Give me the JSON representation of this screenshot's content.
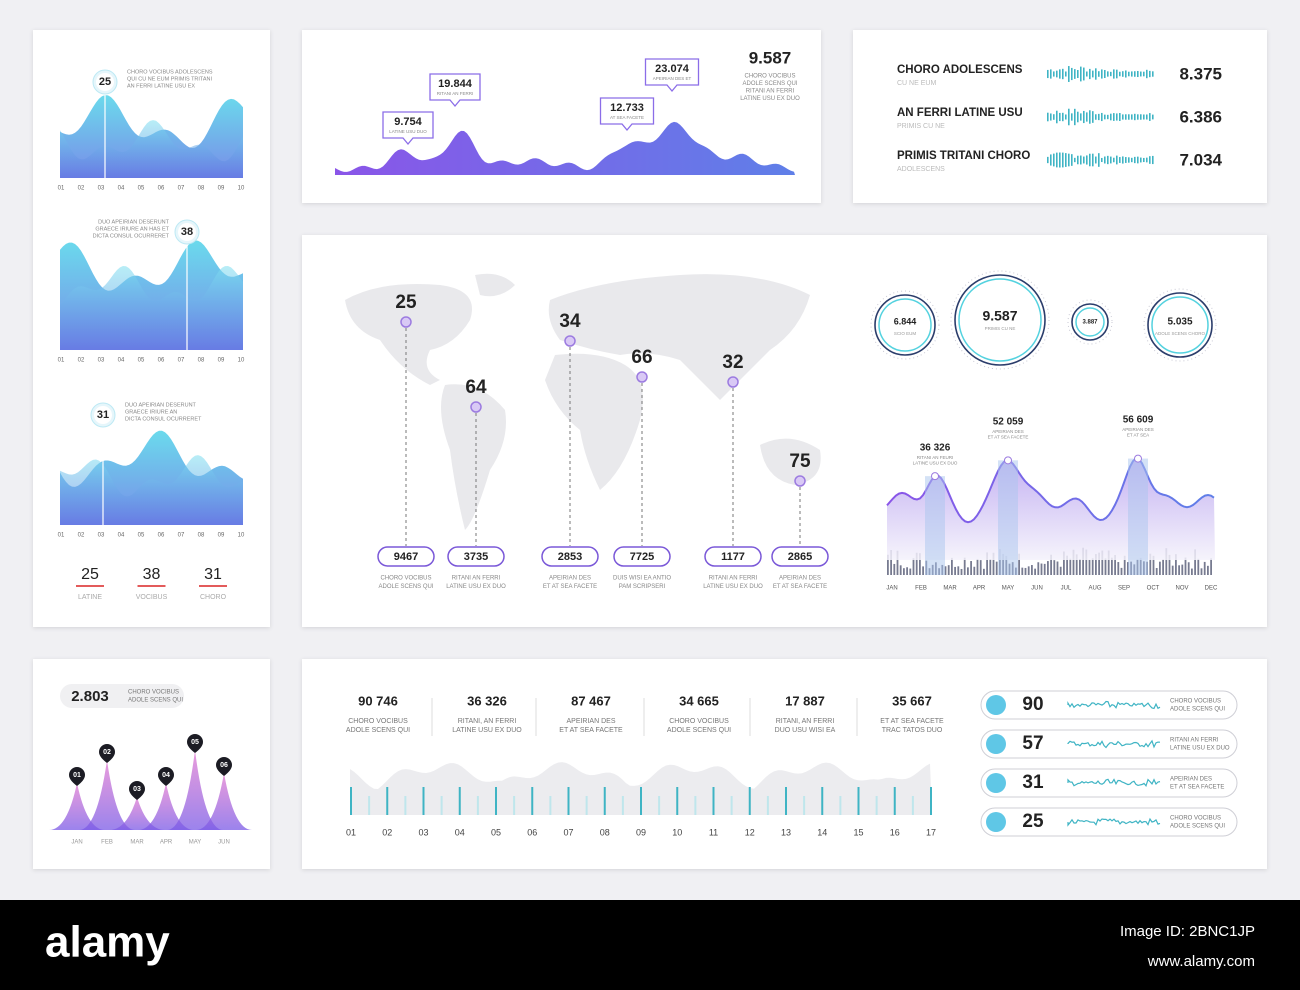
{
  "panel_left": {
    "charts": [
      {
        "value": "25",
        "caption": [
          "CHORO VOCIBUS ADOLESCENS",
          "QUI CU NE EUM PRIMIS TRITANI",
          "AN FERRI LATINE USU EX"
        ]
      },
      {
        "value": "38",
        "caption": [
          "DUO APEIRIAN DESERUNT",
          "GRAECE IRIURE AN HAS ET",
          "DICTA CONSUL OCURRERET"
        ]
      },
      {
        "value": "31",
        "caption": [
          "DUO APEIRIAN DESERUNT",
          "GRAECE IRIURE AN",
          "DICTA CONSUL OCURRERET"
        ]
      }
    ],
    "x_labels": [
      "01",
      "02",
      "03",
      "04",
      "05",
      "06",
      "07",
      "08",
      "09",
      "10"
    ],
    "summary": [
      {
        "value": "25",
        "label": "LATINE"
      },
      {
        "value": "38",
        "label": "VOCIBUS"
      },
      {
        "value": "31",
        "label": "CHORO"
      }
    ]
  },
  "panel_top": {
    "callouts": [
      {
        "value": "9.754",
        "caption": "LATINE USU DUO"
      },
      {
        "value": "19.844",
        "caption": "RITANI AN FERRI"
      },
      {
        "value": "12.733",
        "caption": "AT SEA FACETE"
      },
      {
        "value": "23.074",
        "caption": "APEIRIAN DES ET"
      }
    ],
    "headline": {
      "value": "9.587",
      "caption": [
        "CHORO VOCIBUS",
        "ADOLE SCENS QUI",
        "RITANI AN FERRI",
        "LATINE USU EX DUO"
      ]
    }
  },
  "panel_top_right": {
    "rows": [
      {
        "title": "CHORO ADOLESCENS",
        "subtitle": "CU NE EUM",
        "value": "8.375"
      },
      {
        "title": "AN FERRI LATINE USU",
        "subtitle": "PRIMIS CU NE",
        "value": "6.386"
      },
      {
        "title": "PRIMIS TRITANI CHORO",
        "subtitle": "ADOLESCENS",
        "value": "7.034"
      }
    ]
  },
  "panel_map": {
    "pins": [
      {
        "value": "25",
        "box": "9467",
        "caption": [
          "CHORO VOCIBUS",
          "ADOLE SCENS QUI"
        ]
      },
      {
        "value": "64",
        "box": "3735",
        "caption": [
          "RITANI AN FERRI",
          "LATINE USU EX DUO"
        ]
      },
      {
        "value": "34",
        "box": "2853",
        "caption": [
          "APEIRIAN DES",
          "ET AT SEA FACETE"
        ]
      },
      {
        "value": "66",
        "box": "7725",
        "caption": [
          "DUIS WISI EA ANTIO",
          "PAM SCRIPSERI"
        ]
      },
      {
        "value": "32",
        "box": "1177",
        "caption": [
          "RITANI AN FERRI",
          "LATINE USU EX DUO"
        ]
      },
      {
        "value": "75",
        "box": "2865",
        "caption": [
          "APEIRIAN DES",
          "ET AT SEA FACETE"
        ]
      }
    ],
    "circles": [
      {
        "value": "6.844",
        "caption": "SCIO EUM"
      },
      {
        "value": "9.587",
        "caption": "PRIMIS CU NE"
      },
      {
        "value": "3.887"
      },
      {
        "value": "5.035",
        "caption": "ADOLE SCENS CHORO"
      }
    ],
    "area_labels": [
      {
        "value": "36 326",
        "caption": [
          "RITANI AN FEURI",
          "LATINE USU EX DUO"
        ]
      },
      {
        "value": "52 059",
        "caption": [
          "APEIRIAN DES",
          "ET AT SEA FACETE"
        ]
      },
      {
        "value": "56 609",
        "caption": [
          "APEIRIAN DES",
          "ET AT SEA"
        ]
      }
    ],
    "months": [
      "JAN",
      "FEB",
      "MAR",
      "APR",
      "MAY",
      "JUN",
      "JUL",
      "AUG",
      "SEP",
      "OCT",
      "NOV",
      "DEC"
    ]
  },
  "panel_bottom_left": {
    "value": "2.803",
    "caption": [
      "CHORO VOCIBUS",
      "ADOLE SCENS QUI"
    ],
    "markers": [
      "01",
      "02",
      "03",
      "04",
      "05",
      "06"
    ],
    "months": [
      "JAN",
      "FEB",
      "MAR",
      "APR",
      "MAY",
      "JUN"
    ]
  },
  "panel_bottom": {
    "stats": [
      {
        "value": "90 746",
        "caption": [
          "CHORO VOCIBUS",
          "ADOLE SCENS QUI"
        ]
      },
      {
        "value": "36 326",
        "caption": [
          "RITANI, AN FERRI",
          "LATINE USU EX DUO"
        ]
      },
      {
        "value": "87 467",
        "caption": [
          "APEIRIAN DES",
          "ET AT SEA FACETE"
        ]
      },
      {
        "value": "34 665",
        "caption": [
          "CHORO VOCIBUS",
          "ADOLE SCENS QUI"
        ]
      },
      {
        "value": "17 887",
        "caption": [
          "RITANI, AN FERRI",
          "DUO USU WISI EA"
        ]
      },
      {
        "value": "35 667",
        "caption": [
          "ET AT SEA FACETE",
          "TRAC TATOS DUO"
        ]
      }
    ],
    "x_labels": [
      "01",
      "02",
      "03",
      "04",
      "05",
      "06",
      "07",
      "08",
      "09",
      "10",
      "11",
      "12",
      "13",
      "14",
      "15",
      "16",
      "17"
    ],
    "pills": [
      {
        "value": "90",
        "caption": [
          "CHORO VOCIBUS",
          "ADOLE SCENS QUI"
        ]
      },
      {
        "value": "57",
        "caption": [
          "RITANI AN FERRI",
          "LATINE USU EX DUO"
        ]
      },
      {
        "value": "31",
        "caption": [
          "APEIRIAN DES",
          "ET AT SEA FACETE"
        ]
      },
      {
        "value": "25",
        "caption": [
          "CHORO VOCIBUS",
          "ADOLE SCENS QUI"
        ]
      }
    ]
  },
  "watermark": {
    "brand": "alamy",
    "image_id": "Image ID: 2BNC1JP",
    "url": "www.alamy.com"
  }
}
